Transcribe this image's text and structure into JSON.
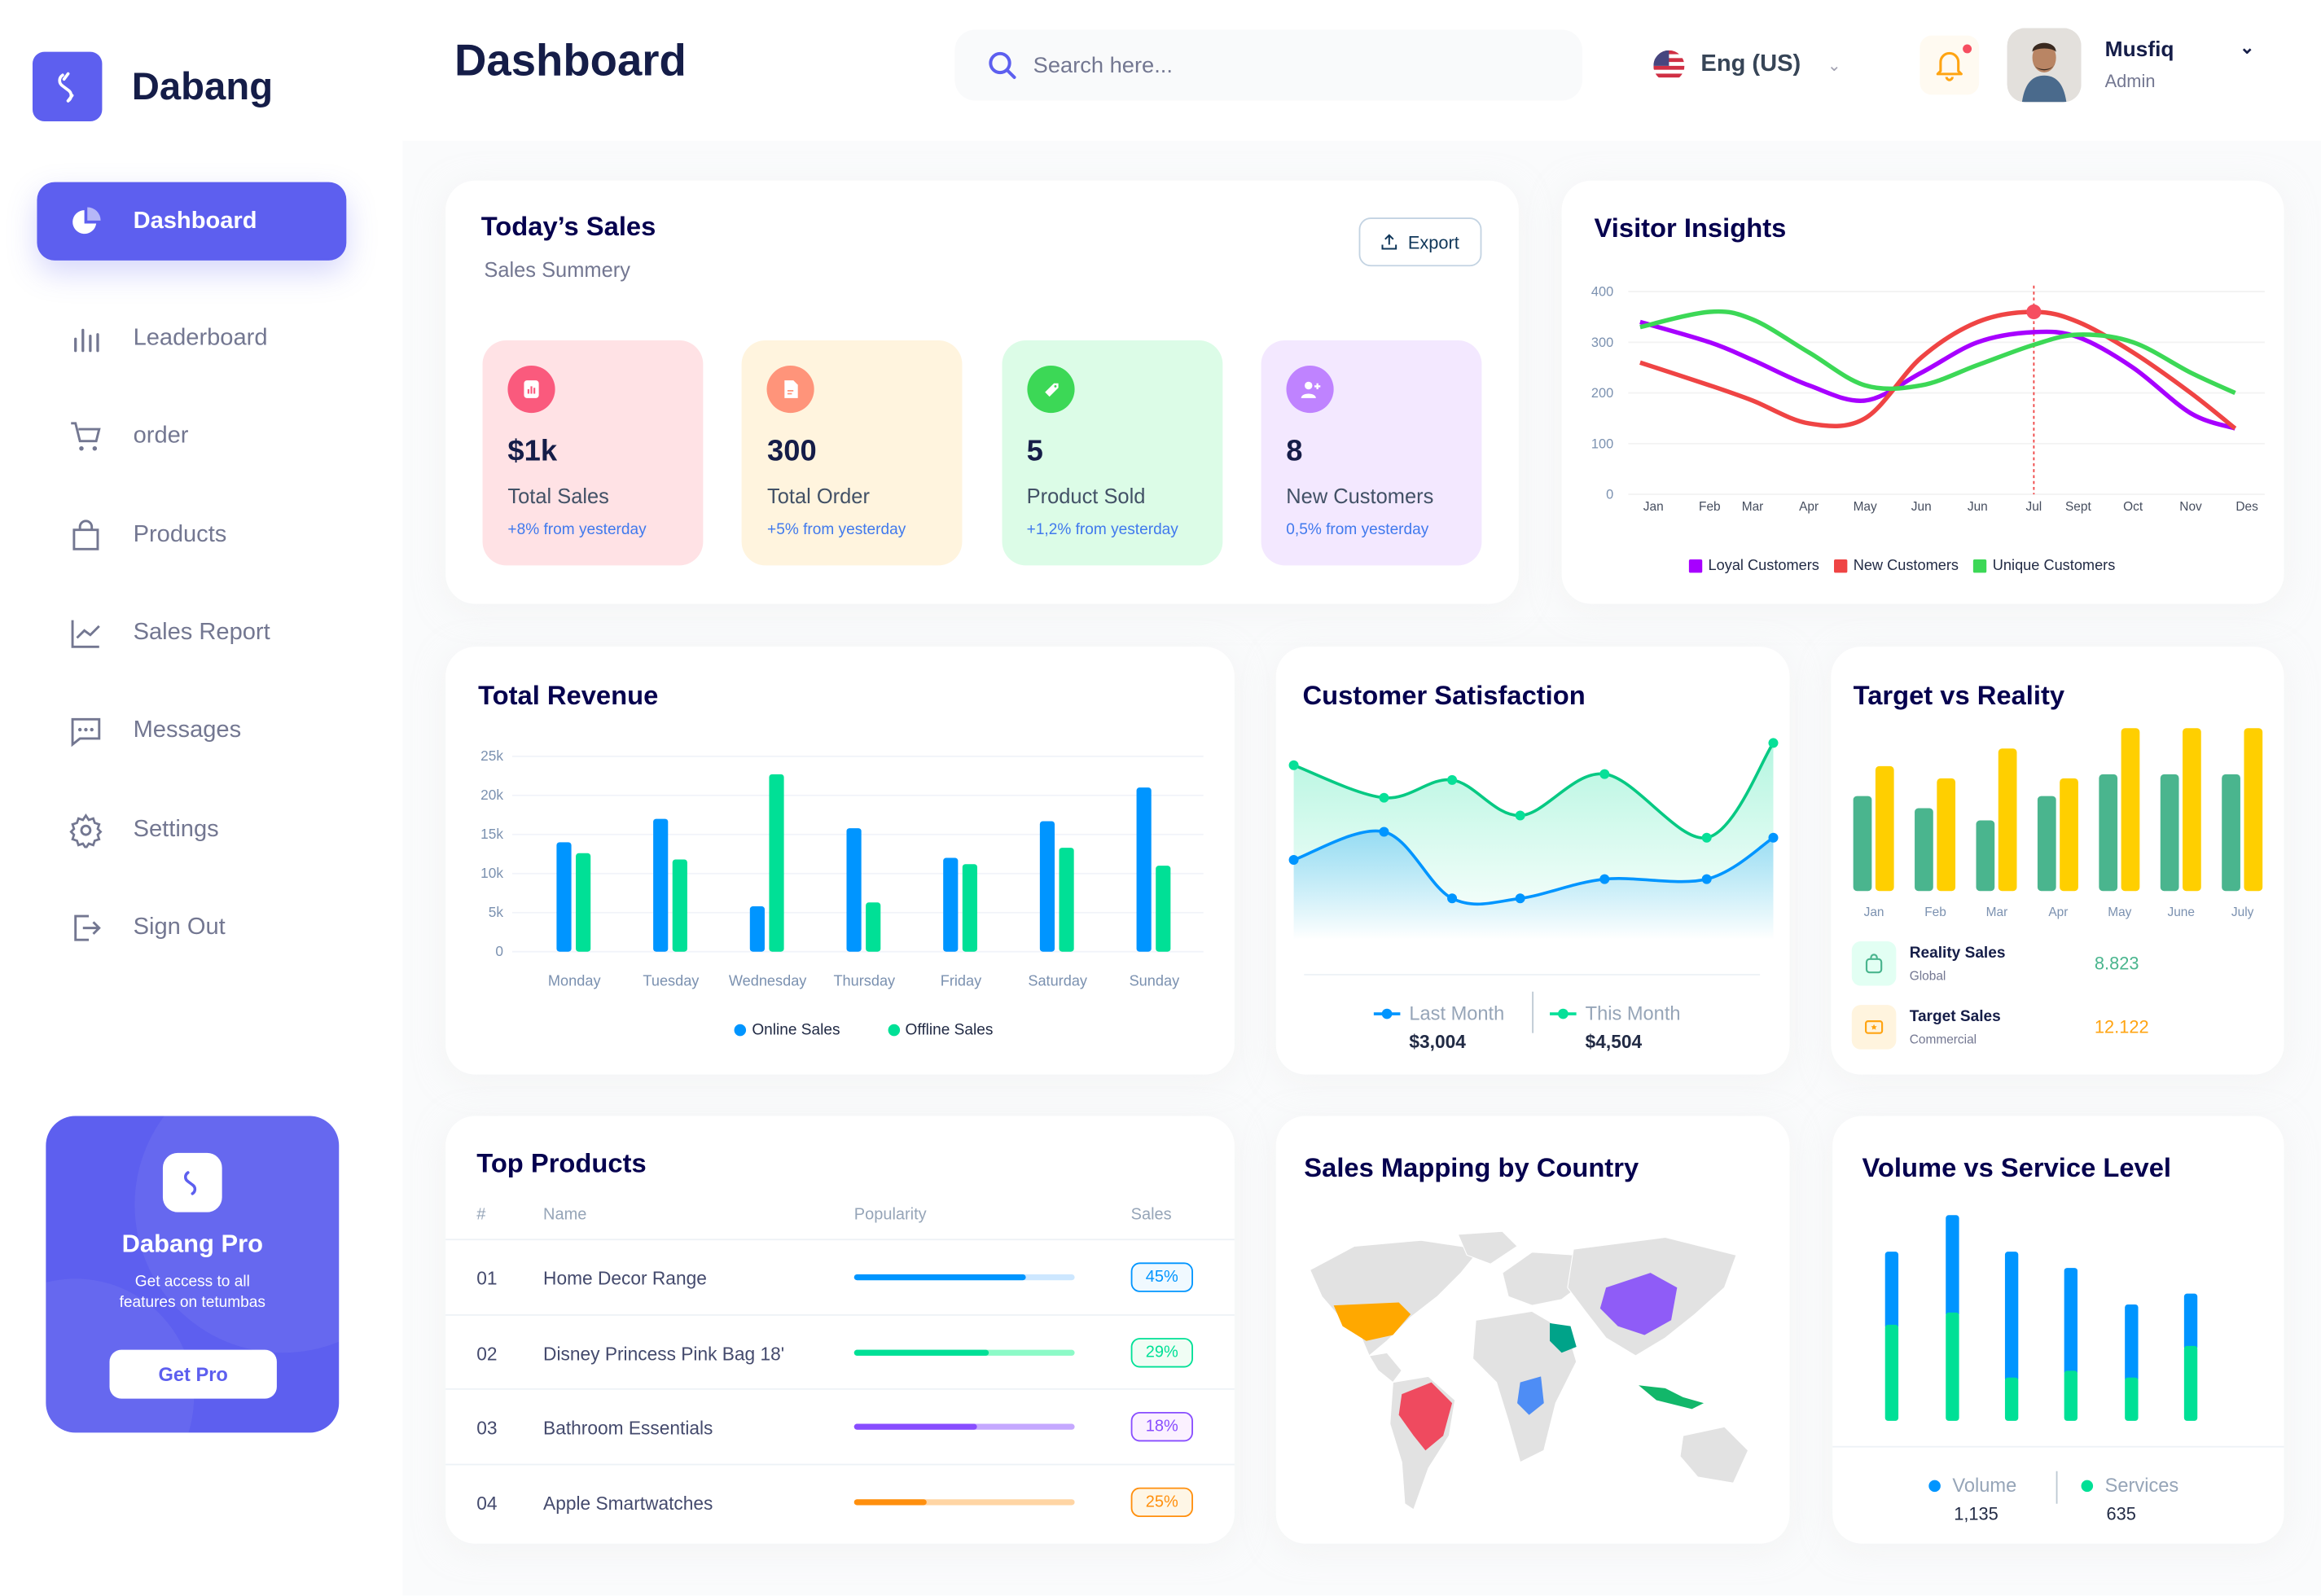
{
  "brand": {
    "name": "Dabang",
    "accent": "#5d5fef"
  },
  "header": {
    "title": "Dashboard",
    "search_placeholder": "Search here...",
    "language": "Eng (US)",
    "user_name": "Musfiq",
    "user_role": "Admin"
  },
  "sidebar": {
    "items": [
      {
        "label": "Dashboard",
        "icon": "pie-chart-icon",
        "active": true
      },
      {
        "label": "Leaderboard",
        "icon": "bar-chart-icon"
      },
      {
        "label": "order",
        "icon": "cart-icon"
      },
      {
        "label": "Products",
        "icon": "shopping-bag-icon"
      },
      {
        "label": "Sales Report",
        "icon": "line-chart-icon"
      },
      {
        "label": "Messages",
        "icon": "message-icon"
      },
      {
        "label": "Settings",
        "icon": "gear-icon"
      },
      {
        "label": "Sign Out",
        "icon": "sign-out-icon"
      }
    ],
    "promo": {
      "title": "Dabang Pro",
      "text1": "Get access to all",
      "text2": "features on tetumbas",
      "button": "Get Pro"
    }
  },
  "todays_sales": {
    "title": "Today’s Sales",
    "subtitle": "Sales Summery",
    "export": "Export",
    "cards": [
      {
        "value": "$1k",
        "label": "Total Sales",
        "delta": "+8% from yesterday",
        "bg": "#ffe2e5",
        "icon_bg": "#fa5a7d",
        "icon": "bar-chart-icon"
      },
      {
        "value": "300",
        "label": "Total Order",
        "delta": "+5% from yesterday",
        "bg": "#fff4de",
        "icon_bg": "#ff947a",
        "icon": "document-icon"
      },
      {
        "value": "5",
        "label": "Product Sold",
        "delta": "+1,2% from yesterday",
        "bg": "#dcfce7",
        "icon_bg": "#3cd856",
        "icon": "tag-icon"
      },
      {
        "value": "8",
        "label": "New Customers",
        "delta": "0,5% from yesterday",
        "bg": "#f3e8ff",
        "icon_bg": "#bf83ff",
        "icon": "add-user-icon"
      }
    ]
  },
  "visitor_insights": {
    "title": "Visitor Insights"
  },
  "total_revenue": {
    "title": "Total Revenue"
  },
  "customer_satisfaction": {
    "title": "Customer Satisfaction",
    "last_label": "Last Month",
    "last_value": "$3,004",
    "this_label": "This Month",
    "this_value": "$4,504"
  },
  "target_vs_reality": {
    "title": "Target vs Reality",
    "rows": [
      {
        "label": "Reality Sales",
        "sub": "Global",
        "value": "8.823",
        "color": "#4ab58e",
        "bg": "#e2fff3",
        "icon": "shopping-bag-icon"
      },
      {
        "label": "Target Sales",
        "sub": "Commercial",
        "value": "12.122",
        "color": "#ffa412",
        "bg": "#fff4de",
        "icon": "ticket-icon"
      }
    ]
  },
  "top_products": {
    "title": "Top Products",
    "columns": [
      "#",
      "Name",
      "Popularity",
      "Sales"
    ],
    "rows": [
      {
        "num": "01",
        "name": "Home Decor Range",
        "popularity": 78,
        "sales": "45%",
        "color": "#0095ff",
        "light": "#cde7ff",
        "badge_bg": "#f0f9ff"
      },
      {
        "num": "02",
        "name": "Disney Princess Pink Bag 18'",
        "popularity": 61,
        "sales": "29%",
        "color": "#00e096",
        "light": "#8cfac7",
        "badge_bg": "#f0fdf4"
      },
      {
        "num": "03",
        "name": "Bathroom Essentials",
        "popularity": 56,
        "sales": "18%",
        "color": "#884dff",
        "light": "#c5a8ff",
        "badge_bg": "#fbf1ff"
      },
      {
        "num": "04",
        "name": "Apple Smartwatches",
        "popularity": 33,
        "sales": "25%",
        "color": "#ff8f0d",
        "light": "#ffd5a4",
        "badge_bg": "#fef6e6"
      }
    ]
  },
  "sales_mapping": {
    "title": "Sales Mapping by Country",
    "highlight_colors": {
      "usa": "#ffa800",
      "brazil": "#ef4a5f",
      "china": "#8f5cf7",
      "saudi_arabia": "#00a389",
      "indonesia": "#12b76a",
      "africa": "#4e8df5"
    }
  },
  "volume_service": {
    "title": "Volume vs Service Level",
    "volume_label": "Volume",
    "volume_value": "1,135",
    "services_label": "Services",
    "services_value": "635"
  },
  "chart_data": [
    {
      "type": "line",
      "title": "Visitor Insights",
      "categories": [
        "Jan",
        "Feb",
        "Mar",
        "Apr",
        "May",
        "Jun",
        "Jun",
        "Jul",
        "Sept",
        "Oct",
        "Nov",
        "Des"
      ],
      "ylim": [
        0,
        400
      ],
      "yticks": [
        "0",
        "100",
        "200",
        "300",
        "400"
      ],
      "legend": "bottom",
      "highlight": {
        "series": "New Customers",
        "category": "Jul"
      },
      "series": [
        {
          "name": "Loyal Customers",
          "color": "#a700ff",
          "values": [
            340,
            300,
            265,
            215,
            185,
            240,
            300,
            320,
            310,
            250,
            160,
            130
          ]
        },
        {
          "name": "New Customers",
          "color": "#ef4444",
          "values": [
            260,
            215,
            185,
            140,
            150,
            270,
            340,
            360,
            340,
            280,
            200,
            130
          ]
        },
        {
          "name": "Unique Customers",
          "color": "#3cd856",
          "values": [
            330,
            360,
            345,
            280,
            215,
            215,
            255,
            295,
            315,
            300,
            240,
            200
          ]
        }
      ]
    },
    {
      "type": "bar",
      "title": "Total Revenue",
      "categories": [
        "Monday",
        "Tuesday",
        "Wednesday",
        "Thursday",
        "Friday",
        "Saturday",
        "Sunday"
      ],
      "ylim": [
        0,
        25000
      ],
      "yticks": [
        "0",
        "5k",
        "10k",
        "15k",
        "20k",
        "25k"
      ],
      "legend": "bottom",
      "grid": true,
      "series": [
        {
          "name": "Online Sales",
          "color": "#0095ff",
          "values": [
            14000,
            17000,
            5800,
            15800,
            12000,
            16700,
            21000
          ]
        },
        {
          "name": "Offline Sales",
          "color": "#00e096",
          "values": [
            12600,
            11800,
            22700,
            6300,
            11200,
            13300,
            11000
          ]
        }
      ]
    },
    {
      "type": "area",
      "title": "Customer Satisfaction",
      "legend": "bottom",
      "series": [
        {
          "name": "Last Month",
          "color": "#0095ff",
          "values": [
            59,
            78,
            33,
            33,
            46,
            46,
            74
          ]
        },
        {
          "name": "This Month",
          "color": "#07e098",
          "values": [
            123,
            101,
            113,
            89,
            117,
            74,
            138
          ]
        }
      ]
    },
    {
      "type": "bar",
      "title": "Target vs Reality",
      "categories": [
        "Jan",
        "Feb",
        "Mar",
        "Apr",
        "May",
        "June",
        "July"
      ],
      "series": [
        {
          "name": "Reality Sales",
          "color": "#4ab58e",
          "values": [
            350,
            305,
            260,
            350,
            430,
            430,
            430
          ]
        },
        {
          "name": "Target Sales",
          "color": "#ffcf00",
          "values": [
            460,
            415,
            525,
            415,
            600,
            600,
            600
          ]
        }
      ]
    },
    {
      "type": "bar",
      "stacked": true,
      "title": "Volume vs Service Level",
      "legend": "bottom",
      "series": [
        {
          "name": "Volume",
          "color": "#0095ff",
          "values": [
            270,
            360,
            465,
            380,
            270,
            193
          ]
        },
        {
          "name": "Services",
          "color": "#00e096",
          "values": [
            355,
            400,
            160,
            185,
            160,
            277
          ]
        }
      ]
    }
  ]
}
